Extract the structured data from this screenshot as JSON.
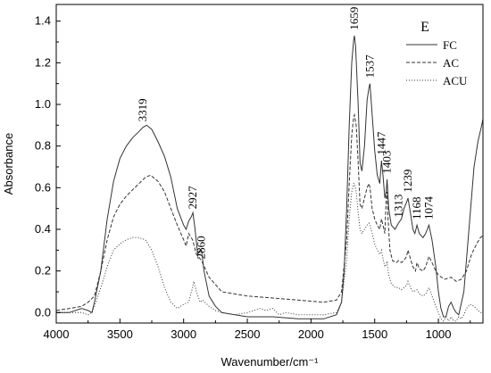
{
  "chart_data": {
    "type": "line",
    "panel_label": "E",
    "xlabel": "Wavenumber/cm⁻¹",
    "ylabel": "Absorbance",
    "xlim": [
      4000,
      650
    ],
    "ylim": [
      -0.05,
      1.48
    ],
    "x_ticks": [
      4000,
      3500,
      3000,
      2500,
      2000,
      1500,
      1000
    ],
    "y_ticks": [
      0.0,
      0.2,
      0.4,
      0.6,
      0.8,
      1.0,
      1.2,
      1.4
    ],
    "y_tick_labels": [
      "0.0",
      "0.2",
      "0.4",
      "0.6",
      "0.8",
      "1.0",
      "1.2",
      "1.4"
    ],
    "x_reversed": true,
    "grid": false,
    "legend_position": "top-right",
    "series": [
      {
        "name": "FC",
        "style": "solid",
        "points": [
          [
            4000,
            0.0
          ],
          [
            3900,
            0.0
          ],
          [
            3800,
            0.02
          ],
          [
            3750,
            0.01
          ],
          [
            3720,
            0.0
          ],
          [
            3700,
            0.05
          ],
          [
            3650,
            0.2
          ],
          [
            3600,
            0.45
          ],
          [
            3550,
            0.63
          ],
          [
            3500,
            0.74
          ],
          [
            3450,
            0.8
          ],
          [
            3400,
            0.84
          ],
          [
            3350,
            0.87
          ],
          [
            3319,
            0.89
          ],
          [
            3290,
            0.9
          ],
          [
            3250,
            0.88
          ],
          [
            3200,
            0.82
          ],
          [
            3150,
            0.75
          ],
          [
            3100,
            0.65
          ],
          [
            3050,
            0.5
          ],
          [
            3000,
            0.42
          ],
          [
            2980,
            0.4
          ],
          [
            2960,
            0.44
          ],
          [
            2940,
            0.46
          ],
          [
            2927,
            0.48
          ],
          [
            2910,
            0.4
          ],
          [
            2890,
            0.28
          ],
          [
            2870,
            0.3
          ],
          [
            2860,
            0.3
          ],
          [
            2840,
            0.2
          ],
          [
            2800,
            0.08
          ],
          [
            2750,
            0.03
          ],
          [
            2700,
            0.0
          ],
          [
            2500,
            -0.02
          ],
          [
            2300,
            -0.02
          ],
          [
            2100,
            -0.03
          ],
          [
            1900,
            -0.03
          ],
          [
            1800,
            -0.01
          ],
          [
            1760,
            0.05
          ],
          [
            1740,
            0.2
          ],
          [
            1720,
            0.5
          ],
          [
            1700,
            0.9
          ],
          [
            1680,
            1.2
          ],
          [
            1665,
            1.31
          ],
          [
            1659,
            1.33
          ],
          [
            1650,
            1.28
          ],
          [
            1630,
            1.0
          ],
          [
            1615,
            0.72
          ],
          [
            1600,
            0.68
          ],
          [
            1580,
            0.8
          ],
          [
            1560,
            1.02
          ],
          [
            1545,
            1.08
          ],
          [
            1537,
            1.1
          ],
          [
            1520,
            0.95
          ],
          [
            1500,
            0.78
          ],
          [
            1480,
            0.66
          ],
          [
            1460,
            0.62
          ],
          [
            1447,
            0.73
          ],
          [
            1435,
            0.66
          ],
          [
            1420,
            0.55
          ],
          [
            1410,
            0.58
          ],
          [
            1403,
            0.64
          ],
          [
            1390,
            0.5
          ],
          [
            1370,
            0.42
          ],
          [
            1340,
            0.4
          ],
          [
            1313,
            0.43
          ],
          [
            1290,
            0.45
          ],
          [
            1270,
            0.5
          ],
          [
            1250,
            0.53
          ],
          [
            1239,
            0.55
          ],
          [
            1220,
            0.48
          ],
          [
            1200,
            0.4
          ],
          [
            1185,
            0.38
          ],
          [
            1168,
            0.42
          ],
          [
            1150,
            0.38
          ],
          [
            1120,
            0.36
          ],
          [
            1100,
            0.38
          ],
          [
            1074,
            0.42
          ],
          [
            1050,
            0.35
          ],
          [
            1020,
            0.22
          ],
          [
            1000,
            0.1
          ],
          [
            980,
            0.02
          ],
          [
            960,
            -0.02
          ],
          [
            940,
            -0.02
          ],
          [
            920,
            0.03
          ],
          [
            900,
            0.05
          ],
          [
            880,
            0.02
          ],
          [
            860,
            0.0
          ],
          [
            840,
            -0.01
          ],
          [
            800,
            0.1
          ],
          [
            760,
            0.4
          ],
          [
            720,
            0.7
          ],
          [
            690,
            0.82
          ],
          [
            660,
            0.9
          ],
          [
            650,
            0.93
          ]
        ]
      },
      {
        "name": "AC",
        "style": "dashed",
        "points": [
          [
            4000,
            0.01
          ],
          [
            3900,
            0.02
          ],
          [
            3800,
            0.03
          ],
          [
            3750,
            0.05
          ],
          [
            3700,
            0.08
          ],
          [
            3650,
            0.2
          ],
          [
            3600,
            0.35
          ],
          [
            3550,
            0.46
          ],
          [
            3500,
            0.52
          ],
          [
            3450,
            0.56
          ],
          [
            3400,
            0.59
          ],
          [
            3350,
            0.62
          ],
          [
            3300,
            0.65
          ],
          [
            3260,
            0.66
          ],
          [
            3200,
            0.63
          ],
          [
            3150,
            0.58
          ],
          [
            3100,
            0.5
          ],
          [
            3050,
            0.42
          ],
          [
            3000,
            0.35
          ],
          [
            2980,
            0.32
          ],
          [
            2960,
            0.38
          ],
          [
            2930,
            0.35
          ],
          [
            2900,
            0.28
          ],
          [
            2860,
            0.25
          ],
          [
            2800,
            0.17
          ],
          [
            2700,
            0.1
          ],
          [
            2500,
            0.08
          ],
          [
            2300,
            0.07
          ],
          [
            2100,
            0.06
          ],
          [
            1900,
            0.05
          ],
          [
            1800,
            0.06
          ],
          [
            1760,
            0.1
          ],
          [
            1720,
            0.35
          ],
          [
            1700,
            0.62
          ],
          [
            1680,
            0.85
          ],
          [
            1665,
            0.94
          ],
          [
            1659,
            0.95
          ],
          [
            1645,
            0.9
          ],
          [
            1630,
            0.72
          ],
          [
            1615,
            0.52
          ],
          [
            1600,
            0.5
          ],
          [
            1580,
            0.55
          ],
          [
            1560,
            0.6
          ],
          [
            1545,
            0.62
          ],
          [
            1537,
            0.6
          ],
          [
            1520,
            0.5
          ],
          [
            1500,
            0.45
          ],
          [
            1480,
            0.42
          ],
          [
            1460,
            0.4
          ],
          [
            1447,
            0.45
          ],
          [
            1435,
            0.42
          ],
          [
            1420,
            0.38
          ],
          [
            1410,
            0.55
          ],
          [
            1403,
            0.58
          ],
          [
            1395,
            0.45
          ],
          [
            1380,
            0.3
          ],
          [
            1360,
            0.25
          ],
          [
            1330,
            0.24
          ],
          [
            1313,
            0.25
          ],
          [
            1290,
            0.24
          ],
          [
            1270,
            0.25
          ],
          [
            1250,
            0.27
          ],
          [
            1239,
            0.3
          ],
          [
            1220,
            0.26
          ],
          [
            1200,
            0.22
          ],
          [
            1180,
            0.2
          ],
          [
            1168,
            0.24
          ],
          [
            1150,
            0.21
          ],
          [
            1120,
            0.2
          ],
          [
            1100,
            0.22
          ],
          [
            1074,
            0.27
          ],
          [
            1050,
            0.24
          ],
          [
            1020,
            0.2
          ],
          [
            1000,
            0.18
          ],
          [
            950,
            0.16
          ],
          [
            900,
            0.17
          ],
          [
            860,
            0.15
          ],
          [
            820,
            0.16
          ],
          [
            780,
            0.2
          ],
          [
            740,
            0.28
          ],
          [
            700,
            0.33
          ],
          [
            670,
            0.36
          ],
          [
            650,
            0.37
          ]
        ]
      },
      {
        "name": "ACU",
        "style": "dotted",
        "points": [
          [
            4000,
            0.0
          ],
          [
            3900,
            0.0
          ],
          [
            3800,
            0.0
          ],
          [
            3750,
            -0.01
          ],
          [
            3720,
            0.0
          ],
          [
            3700,
            0.03
          ],
          [
            3650,
            0.12
          ],
          [
            3600,
            0.22
          ],
          [
            3550,
            0.3
          ],
          [
            3500,
            0.33
          ],
          [
            3450,
            0.35
          ],
          [
            3400,
            0.36
          ],
          [
            3350,
            0.36
          ],
          [
            3300,
            0.35
          ],
          [
            3250,
            0.3
          ],
          [
            3200,
            0.22
          ],
          [
            3150,
            0.12
          ],
          [
            3100,
            0.05
          ],
          [
            3050,
            0.02
          ],
          [
            3000,
            0.04
          ],
          [
            2960,
            0.05
          ],
          [
            2930,
            0.12
          ],
          [
            2920,
            0.15
          ],
          [
            2900,
            0.1
          ],
          [
            2870,
            0.05
          ],
          [
            2850,
            0.06
          ],
          [
            2800,
            0.03
          ],
          [
            2750,
            0.01
          ],
          [
            2700,
            0.0
          ],
          [
            2600,
            -0.01
          ],
          [
            2500,
            0.0
          ],
          [
            2450,
            0.01
          ],
          [
            2400,
            0.02
          ],
          [
            2350,
            0.01
          ],
          [
            2300,
            0.02
          ],
          [
            2250,
            -0.01
          ],
          [
            2200,
            0.0
          ],
          [
            2100,
            -0.01
          ],
          [
            2000,
            -0.01
          ],
          [
            1900,
            -0.01
          ],
          [
            1800,
            0.0
          ],
          [
            1760,
            0.05
          ],
          [
            1720,
            0.25
          ],
          [
            1700,
            0.45
          ],
          [
            1680,
            0.58
          ],
          [
            1665,
            0.62
          ],
          [
            1659,
            0.62
          ],
          [
            1645,
            0.58
          ],
          [
            1630,
            0.48
          ],
          [
            1615,
            0.4
          ],
          [
            1600,
            0.38
          ],
          [
            1580,
            0.4
          ],
          [
            1560,
            0.42
          ],
          [
            1545,
            0.43
          ],
          [
            1537,
            0.42
          ],
          [
            1520,
            0.38
          ],
          [
            1500,
            0.33
          ],
          [
            1480,
            0.3
          ],
          [
            1460,
            0.28
          ],
          [
            1447,
            0.3
          ],
          [
            1435,
            0.26
          ],
          [
            1420,
            0.22
          ],
          [
            1403,
            0.24
          ],
          [
            1390,
            0.18
          ],
          [
            1370,
            0.14
          ],
          [
            1340,
            0.12
          ],
          [
            1313,
            0.12
          ],
          [
            1290,
            0.11
          ],
          [
            1270,
            0.12
          ],
          [
            1250,
            0.13
          ],
          [
            1239,
            0.15
          ],
          [
            1220,
            0.12
          ],
          [
            1200,
            0.1
          ],
          [
            1168,
            0.11
          ],
          [
            1150,
            0.09
          ],
          [
            1120,
            0.08
          ],
          [
            1100,
            0.09
          ],
          [
            1074,
            0.12
          ],
          [
            1050,
            0.08
          ],
          [
            1020,
            0.03
          ],
          [
            1000,
            0.0
          ],
          [
            980,
            -0.03
          ],
          [
            960,
            -0.04
          ],
          [
            940,
            -0.02
          ],
          [
            920,
            -0.04
          ],
          [
            900,
            -0.02
          ],
          [
            880,
            -0.04
          ],
          [
            860,
            -0.04
          ],
          [
            840,
            -0.02
          ],
          [
            820,
            -0.03
          ],
          [
            800,
            -0.01
          ],
          [
            780,
            0.02
          ],
          [
            750,
            0.04
          ],
          [
            720,
            0.03
          ],
          [
            690,
            0.01
          ],
          [
            670,
            0.0
          ],
          [
            650,
            0.0
          ]
        ]
      }
    ],
    "annotations": [
      {
        "text": "3319",
        "x": 3319,
        "y": 0.9
      },
      {
        "text": "2927",
        "x": 2927,
        "y": 0.48
      },
      {
        "text": "2860",
        "x": 2860,
        "y": 0.24
      },
      {
        "text": "1659",
        "x": 1659,
        "y": 1.34
      },
      {
        "text": "1537",
        "x": 1537,
        "y": 1.11
      },
      {
        "text": "1447",
        "x": 1447,
        "y": 0.74
      },
      {
        "text": "1403",
        "x": 1403,
        "y": 0.65
      },
      {
        "text": "1313",
        "x": 1313,
        "y": 0.44
      },
      {
        "text": "1239",
        "x": 1239,
        "y": 0.56
      },
      {
        "text": "1168",
        "x": 1168,
        "y": 0.43
      },
      {
        "text": "1074",
        "x": 1074,
        "y": 0.43
      }
    ]
  }
}
